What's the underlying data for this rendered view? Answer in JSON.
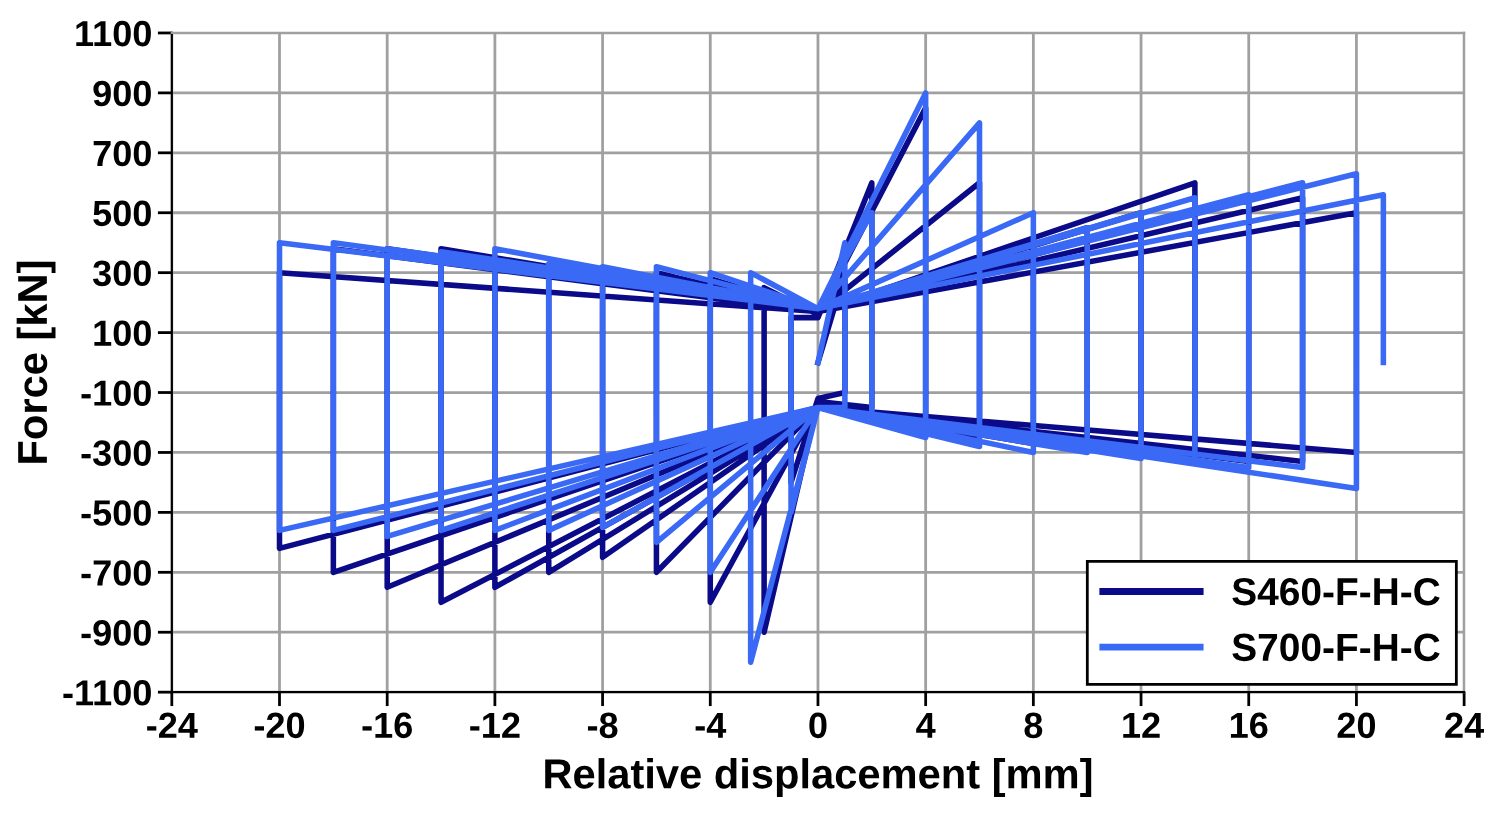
{
  "chart_data": {
    "type": "line",
    "xlabel": "Relative displacement [mm]",
    "ylabel": "Force [kN]",
    "xlim": [
      -24,
      24
    ],
    "xticks": [
      -24,
      -20,
      -16,
      -12,
      -8,
      -4,
      0,
      4,
      8,
      12,
      16,
      20,
      24
    ],
    "ylim": [
      -1100,
      1100
    ],
    "yticks": [
      -1100,
      -900,
      -700,
      -500,
      -300,
      -100,
      100,
      300,
      500,
      700,
      900,
      1100
    ],
    "grid": true,
    "legend": "bottom right",
    "marker": "none",
    "line_style": "solid",
    "series": [
      {
        "name": "S460-F-H-C",
        "color": "#0b0b8a",
        "x": [
          0,
          1,
          1,
          0,
          -1,
          -1,
          0,
          2,
          2,
          0,
          -2,
          -2,
          0,
          4,
          4,
          0,
          -4,
          -4,
          0,
          6,
          6,
          0,
          -6,
          -6,
          0,
          8,
          8,
          0,
          -8,
          -8,
          0,
          10,
          10,
          0,
          -10,
          -10,
          0,
          12,
          12,
          0,
          -12,
          -12,
          0,
          14,
          14,
          0,
          -14,
          -14,
          0,
          16,
          16,
          0,
          -16,
          -16,
          0,
          18,
          18,
          0,
          -18,
          -18,
          0,
          20,
          20,
          0,
          -20,
          -20,
          0
        ],
        "values": [
          0,
          300,
          -100,
          -120,
          -400,
          150,
          150,
          600,
          -150,
          -130,
          -900,
          250,
          160,
          850,
          -200,
          -140,
          -800,
          280,
          170,
          600,
          -250,
          -150,
          -700,
          300,
          170,
          400,
          -270,
          -150,
          -650,
          310,
          170,
          450,
          -290,
          -150,
          -700,
          300,
          170,
          500,
          -300,
          -150,
          -750,
          350,
          170,
          600,
          -320,
          -150,
          -800,
          380,
          170,
          550,
          -330,
          -150,
          -750,
          380,
          170,
          550,
          -330,
          -150,
          -700,
          380,
          170,
          500,
          -300,
          -150,
          -620,
          300,
          170
        ]
      },
      {
        "name": "S700-F-H-C",
        "color": "#3a6af5",
        "x": [
          0,
          1,
          1,
          0,
          -1,
          -1,
          0,
          2,
          2,
          0,
          -2.5,
          -2.5,
          0,
          4,
          4,
          0,
          -4,
          -4,
          0,
          6,
          6,
          0,
          -6,
          -6,
          0,
          8,
          8,
          0,
          -8,
          -8,
          0,
          10,
          10,
          0,
          -10,
          -10,
          0,
          12,
          12,
          0,
          -12,
          -12,
          0,
          14,
          14,
          0,
          -14,
          -14,
          0,
          16,
          16,
          0,
          -16,
          -16,
          0,
          18,
          18,
          0,
          -18,
          -18,
          0,
          20,
          20,
          0,
          -20,
          -20,
          0,
          21,
          21
        ],
        "values": [
          0,
          400,
          -150,
          -150,
          -500,
          200,
          180,
          500,
          -200,
          -150,
          -1000,
          300,
          180,
          900,
          -250,
          -150,
          -700,
          300,
          180,
          800,
          -280,
          -150,
          -600,
          320,
          180,
          500,
          -300,
          -150,
          -550,
          320,
          180,
          450,
          -300,
          -150,
          -560,
          330,
          180,
          500,
          -320,
          -150,
          -560,
          380,
          180,
          550,
          -330,
          -150,
          -560,
          370,
          180,
          560,
          -350,
          -150,
          -580,
          380,
          180,
          600,
          -350,
          -150,
          -560,
          400,
          180,
          630,
          -420,
          -150,
          -560,
          400,
          180,
          560,
          0
        ]
      }
    ]
  }
}
